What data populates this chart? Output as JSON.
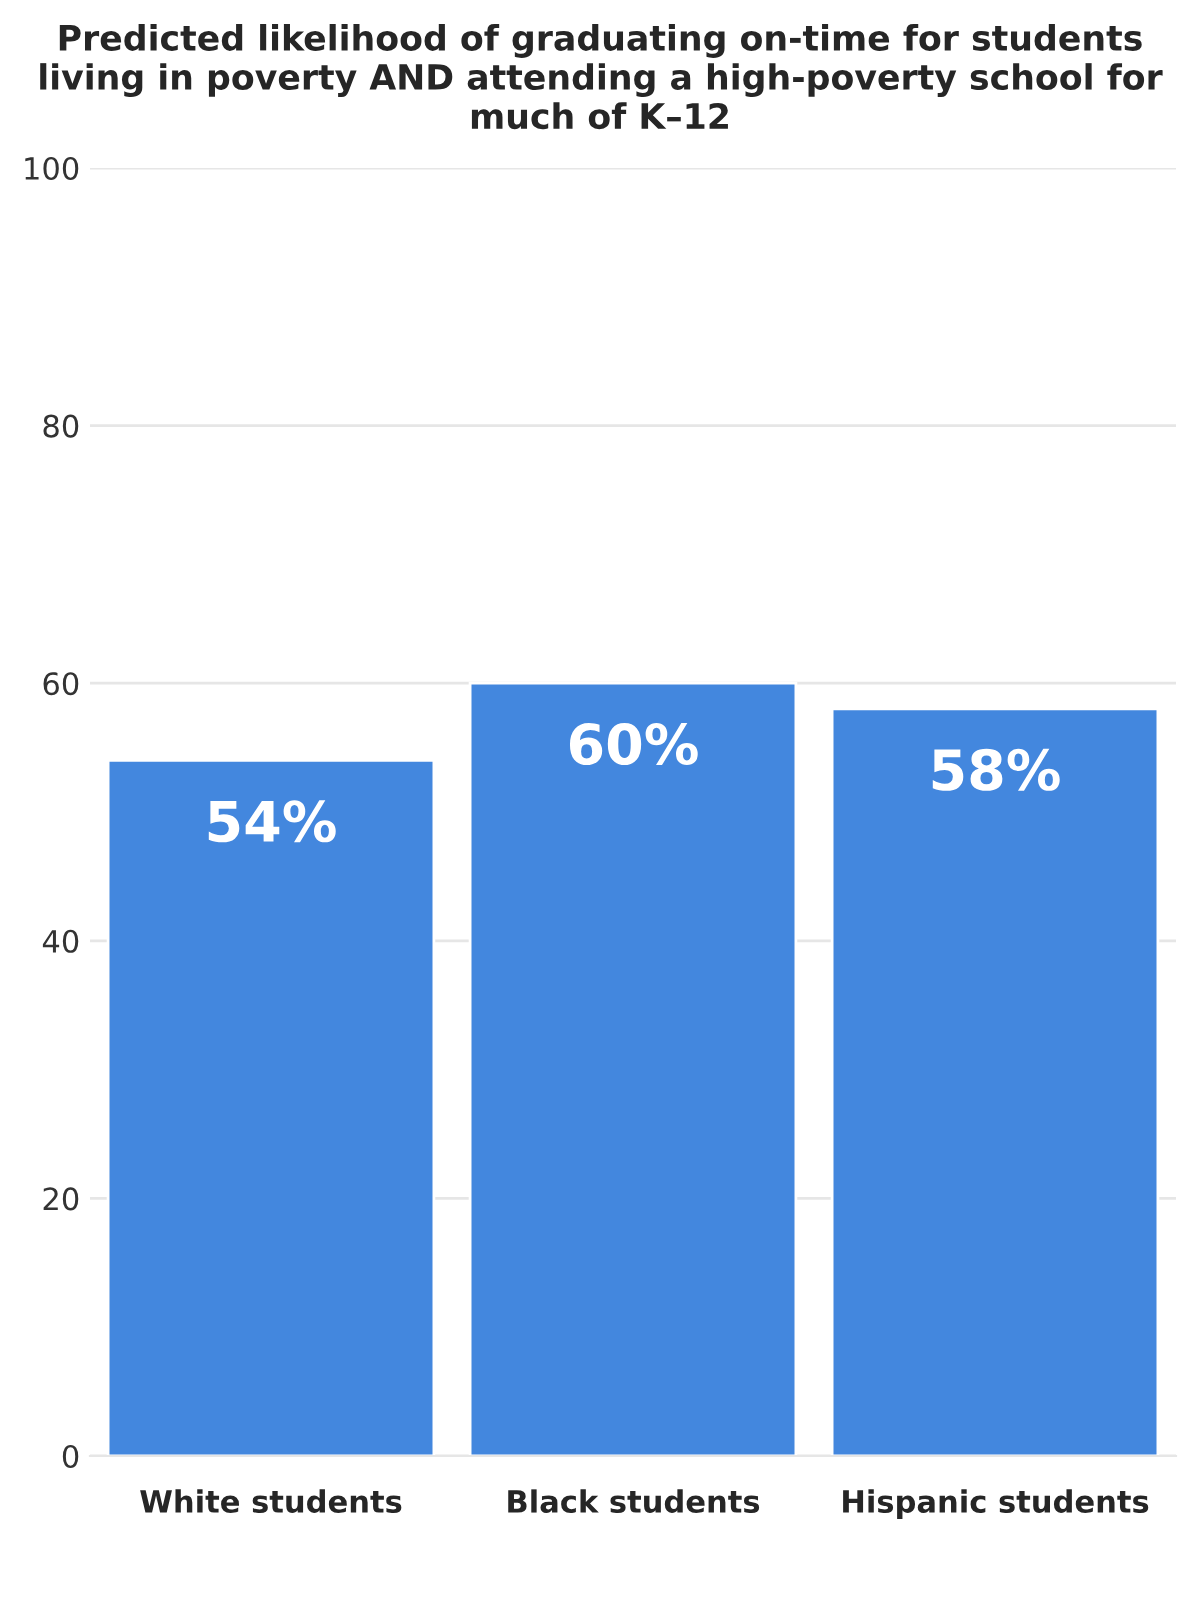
{
  "chart_data": {
    "type": "bar",
    "title": "Predicted likelihood of graduating on-time for students living in poverty AND attending a high-poverty school for much of K–12",
    "categories": [
      "White students",
      "Black students",
      "Hispanic students"
    ],
    "values": [
      54,
      60,
      58
    ],
    "value_labels": [
      "54%",
      "60%",
      "58%"
    ],
    "color": "#4387de",
    "ylim": [
      0,
      100
    ],
    "yticks": [
      0,
      20,
      40,
      60,
      80,
      100
    ],
    "grid": "y"
  }
}
